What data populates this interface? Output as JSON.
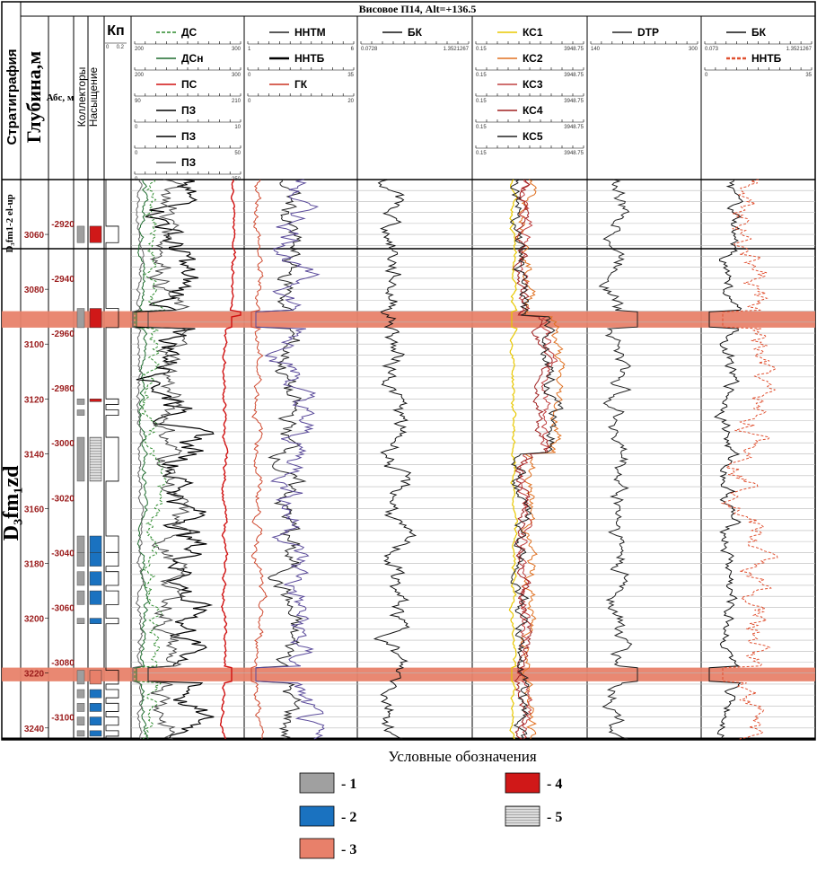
{
  "chart_data": {
    "type": "well-log",
    "title": "Висовое П14, Alt=+136.5",
    "column_headers": {
      "stratigraphy": "Стратиграфия",
      "depth": "Глубина,м",
      "abs": "Абс, м",
      "collectors": "Коллекторы",
      "saturation": "Насыщение",
      "kp": "Кп"
    },
    "kp_scale": [
      "0",
      "0.2"
    ],
    "tracks": [
      {
        "name": "dc-track",
        "curves": [
          {
            "label": "ДС",
            "color": "#2e8b2e",
            "dash": true,
            "min": "200",
            "max": "300"
          },
          {
            "label": "ДСн",
            "color": "#1e6b2e",
            "dash": false,
            "min": "200",
            "max": "300"
          },
          {
            "label": "ПС",
            "color": "#d01010",
            "dash": false,
            "min": "90",
            "max": "210"
          },
          {
            "label": "ПЗ",
            "color": "#000000",
            "dash": false,
            "min": "0",
            "max": "10"
          },
          {
            "label": "ПЗ",
            "color": "#000000",
            "dash": false,
            "min": "0",
            "max": "50"
          },
          {
            "label": "ПЗ",
            "color": "#555555",
            "dash": false,
            "min": "0",
            "max": "250"
          }
        ]
      },
      {
        "name": "nntm-track",
        "curves": [
          {
            "label": "ННТМ",
            "color": "#222222",
            "dash": false,
            "min": "1",
            "max": "6"
          },
          {
            "label": "ННТБ",
            "color": "#000000",
            "dash": false,
            "min": "0",
            "max": "35"
          },
          {
            "label": "ГК",
            "color": "#cc3322",
            "dash": false,
            "min": "0",
            "max": "20"
          }
        ]
      },
      {
        "name": "bk-track",
        "curves": [
          {
            "label": "БК",
            "color": "#111111",
            "dash": false,
            "min": "0.0728",
            "max": "1.3521267"
          }
        ]
      },
      {
        "name": "ks-track",
        "curves": [
          {
            "label": "КС1",
            "color": "#e8c800",
            "dash": false,
            "min": "0.15",
            "max": "3948.75"
          },
          {
            "label": "КС2",
            "color": "#e07020",
            "dash": false,
            "min": "0.15",
            "max": "3948.75"
          },
          {
            "label": "КС3",
            "color": "#c04040",
            "dash": false,
            "min": "0.15",
            "max": "3948.75"
          },
          {
            "label": "КС4",
            "color": "#a02020",
            "dash": false,
            "min": "0.15",
            "max": "3948.75"
          },
          {
            "label": "КС5",
            "color": "#222222",
            "dash": false,
            "min": "0.15",
            "max": "3948.75"
          }
        ]
      },
      {
        "name": "dtp-track",
        "curves": [
          {
            "label": "DTP",
            "color": "#222222",
            "dash": false,
            "min": "140",
            "max": "300"
          }
        ]
      },
      {
        "name": "bk2-track",
        "curves": [
          {
            "label": "БК",
            "color": "#111111",
            "dash": false,
            "min": "0.073",
            "max": "1.3521267"
          },
          {
            "label": "ННТБ",
            "color": "#e05030",
            "dash": true,
            "min": "0",
            "max": "35"
          }
        ]
      }
    ],
    "depth_range_m": [
      3040,
      3244
    ],
    "depth_ticks": [
      "3060",
      "3080",
      "3100",
      "3120",
      "3140",
      "3160",
      "3180",
      "3200",
      "3220",
      "3240"
    ],
    "abs_range_m": [
      -2904,
      -3108
    ],
    "abs_ticks": [
      "-2920",
      "-2940",
      "-2960",
      "-2980",
      "-3000",
      "-3020",
      "-3040",
      "-3060",
      "-3080",
      "-3100"
    ],
    "strat_units": [
      {
        "name": "D₃fm1-2 el-up",
        "top": 3040,
        "bottom": 3072
      },
      {
        "name": "D₃fm₁zd",
        "top": 3072,
        "bottom": 3244
      }
    ],
    "highlight_intervals_m": [
      [
        3088,
        3094
      ],
      [
        3218,
        3223
      ]
    ],
    "collector_intervals_m": [
      [
        3057,
        3063
      ],
      [
        3087,
        3094
      ],
      [
        3120,
        3122
      ],
      [
        3124,
        3126
      ],
      [
        3134,
        3150
      ],
      [
        3170,
        3176
      ],
      [
        3176,
        3181
      ],
      [
        3183,
        3188
      ],
      [
        3190,
        3195
      ],
      [
        3200,
        3202
      ],
      [
        3219,
        3224
      ],
      [
        3226,
        3229
      ],
      [
        3231,
        3234
      ],
      [
        3236,
        3239
      ],
      [
        3241,
        3243
      ]
    ],
    "saturation_intervals": [
      {
        "top": 3057,
        "bottom": 3063,
        "code": 4
      },
      {
        "top": 3087,
        "bottom": 3094,
        "code": 4
      },
      {
        "top": 3120,
        "bottom": 3121,
        "code": 4
      },
      {
        "top": 3134,
        "bottom": 3150,
        "code": 5
      },
      {
        "top": 3170,
        "bottom": 3176,
        "code": 2
      },
      {
        "top": 3176,
        "bottom": 3181,
        "code": 2
      },
      {
        "top": 3183,
        "bottom": 3188,
        "code": 2
      },
      {
        "top": 3190,
        "bottom": 3195,
        "code": 2
      },
      {
        "top": 3200,
        "bottom": 3202,
        "code": 2
      },
      {
        "top": 3219,
        "bottom": 3224,
        "code": 3
      },
      {
        "top": 3226,
        "bottom": 3229,
        "code": 2
      },
      {
        "top": 3231,
        "bottom": 3234,
        "code": 2
      },
      {
        "top": 3236,
        "bottom": 3239,
        "code": 2
      },
      {
        "top": 3241,
        "bottom": 3243,
        "code": 2
      }
    ],
    "legend": {
      "title": "Условные обозначения",
      "items": [
        {
          "code": 1,
          "label": "- 1",
          "color": "#a0a0a0",
          "pattern": "solid"
        },
        {
          "code": 2,
          "label": "- 2",
          "color": "#1a72c0",
          "pattern": "solid"
        },
        {
          "code": 3,
          "label": "- 3",
          "color": "#e8806a",
          "pattern": "solid"
        },
        {
          "code": 4,
          "label": "- 4",
          "color": "#d01818",
          "pattern": "solid"
        },
        {
          "code": 5,
          "label": "- 5",
          "color": "#d0d0d0",
          "pattern": "hatch"
        }
      ]
    }
  }
}
